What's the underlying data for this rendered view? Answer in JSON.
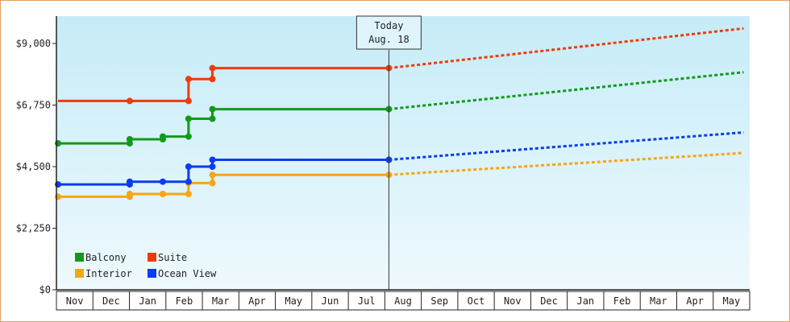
{
  "chart_data": {
    "type": "line",
    "title": "",
    "xlabel": "",
    "ylabel": "",
    "ylim": [
      0,
      10000
    ],
    "y_ticks": [
      {
        "value": 0,
        "label": "$0"
      },
      {
        "value": 2250,
        "label": "$2,250"
      },
      {
        "value": 4500,
        "label": "$4,500"
      },
      {
        "value": 6750,
        "label": "$6,750"
      },
      {
        "value": 9000,
        "label": "$9,000"
      }
    ],
    "month_labels": [
      "Nov",
      "Dec",
      "Jan",
      "Feb",
      "Mar",
      "Apr",
      "May",
      "Jun",
      "Jul",
      "Aug",
      "Sep",
      "Oct",
      "Nov",
      "Dec",
      "Jan",
      "Feb",
      "Mar",
      "Apr",
      "May"
    ],
    "grid": false,
    "legend_position": "bottom-left",
    "today_marker": {
      "line1": "Today",
      "line2": "Aug. 18",
      "x": 9.0
    },
    "series": [
      {
        "name": "Balcony",
        "color": "#119a1a",
        "history": [
          [
            0,
            5350
          ],
          [
            1.95,
            5350
          ],
          [
            1.95,
            5500
          ],
          [
            2.85,
            5500
          ],
          [
            2.85,
            5600
          ],
          [
            3.55,
            5600
          ],
          [
            3.55,
            6250
          ],
          [
            4.2,
            6250
          ],
          [
            4.2,
            6600
          ],
          [
            9.0,
            6600
          ]
        ],
        "forecast": [
          [
            9.0,
            6600
          ],
          [
            18.65,
            7950
          ]
        ]
      },
      {
        "name": "Suite",
        "color": "#f03a0c",
        "history": [
          [
            0,
            6900
          ],
          [
            1.95,
            6900
          ],
          [
            3.55,
            6900
          ],
          [
            3.55,
            7700
          ],
          [
            4.2,
            7700
          ],
          [
            4.2,
            8100
          ],
          [
            9.0,
            8100
          ]
        ],
        "forecast": [
          [
            9.0,
            8100
          ],
          [
            18.65,
            9550
          ]
        ]
      },
      {
        "name": "Interior",
        "color": "#f5a613",
        "history": [
          [
            0,
            3400
          ],
          [
            1.95,
            3400
          ],
          [
            1.95,
            3500
          ],
          [
            2.85,
            3500
          ],
          [
            3.55,
            3500
          ],
          [
            3.55,
            3900
          ],
          [
            4.2,
            3900
          ],
          [
            4.2,
            4200
          ],
          [
            9.0,
            4200
          ]
        ],
        "forecast": [
          [
            9.0,
            4200
          ],
          [
            18.65,
            5000
          ]
        ]
      },
      {
        "name": "Ocean View",
        "color": "#0a3cf0",
        "history": [
          [
            0,
            3850
          ],
          [
            1.95,
            3850
          ],
          [
            1.95,
            3950
          ],
          [
            2.85,
            3950
          ],
          [
            3.55,
            3950
          ],
          [
            3.55,
            4500
          ],
          [
            4.2,
            4500
          ],
          [
            4.2,
            4750
          ],
          [
            9.0,
            4750
          ]
        ],
        "forecast": [
          [
            9.0,
            4750
          ],
          [
            18.65,
            5750
          ]
        ]
      }
    ],
    "markers": [
      {
        "series": 0,
        "points": [
          [
            0,
            5350
          ],
          [
            1.95,
            5350
          ],
          [
            1.95,
            5500
          ],
          [
            2.85,
            5500
          ],
          [
            2.85,
            5600
          ],
          [
            3.55,
            5600
          ],
          [
            3.55,
            6250
          ],
          [
            4.2,
            6250
          ],
          [
            4.2,
            6600
          ],
          [
            9.0,
            6600
          ]
        ]
      },
      {
        "series": 1,
        "points": [
          [
            1.95,
            6900
          ],
          [
            3.55,
            6900
          ],
          [
            3.55,
            7700
          ],
          [
            4.2,
            7700
          ],
          [
            4.2,
            8100
          ],
          [
            9.0,
            8100
          ]
        ]
      },
      {
        "series": 2,
        "points": [
          [
            0,
            3400
          ],
          [
            1.95,
            3400
          ],
          [
            1.95,
            3500
          ],
          [
            2.85,
            3500
          ],
          [
            3.55,
            3500
          ],
          [
            3.55,
            3900
          ],
          [
            4.2,
            3900
          ],
          [
            4.2,
            4200
          ],
          [
            9.0,
            4200
          ]
        ]
      },
      {
        "series": 3,
        "points": [
          [
            0,
            3850
          ],
          [
            1.95,
            3850
          ],
          [
            1.95,
            3950
          ],
          [
            2.85,
            3950
          ],
          [
            3.55,
            3950
          ],
          [
            3.55,
            4500
          ],
          [
            4.2,
            4500
          ],
          [
            4.2,
            4750
          ],
          [
            9.0,
            4750
          ]
        ]
      }
    ],
    "legend_order": [
      0,
      1,
      2,
      3
    ]
  }
}
